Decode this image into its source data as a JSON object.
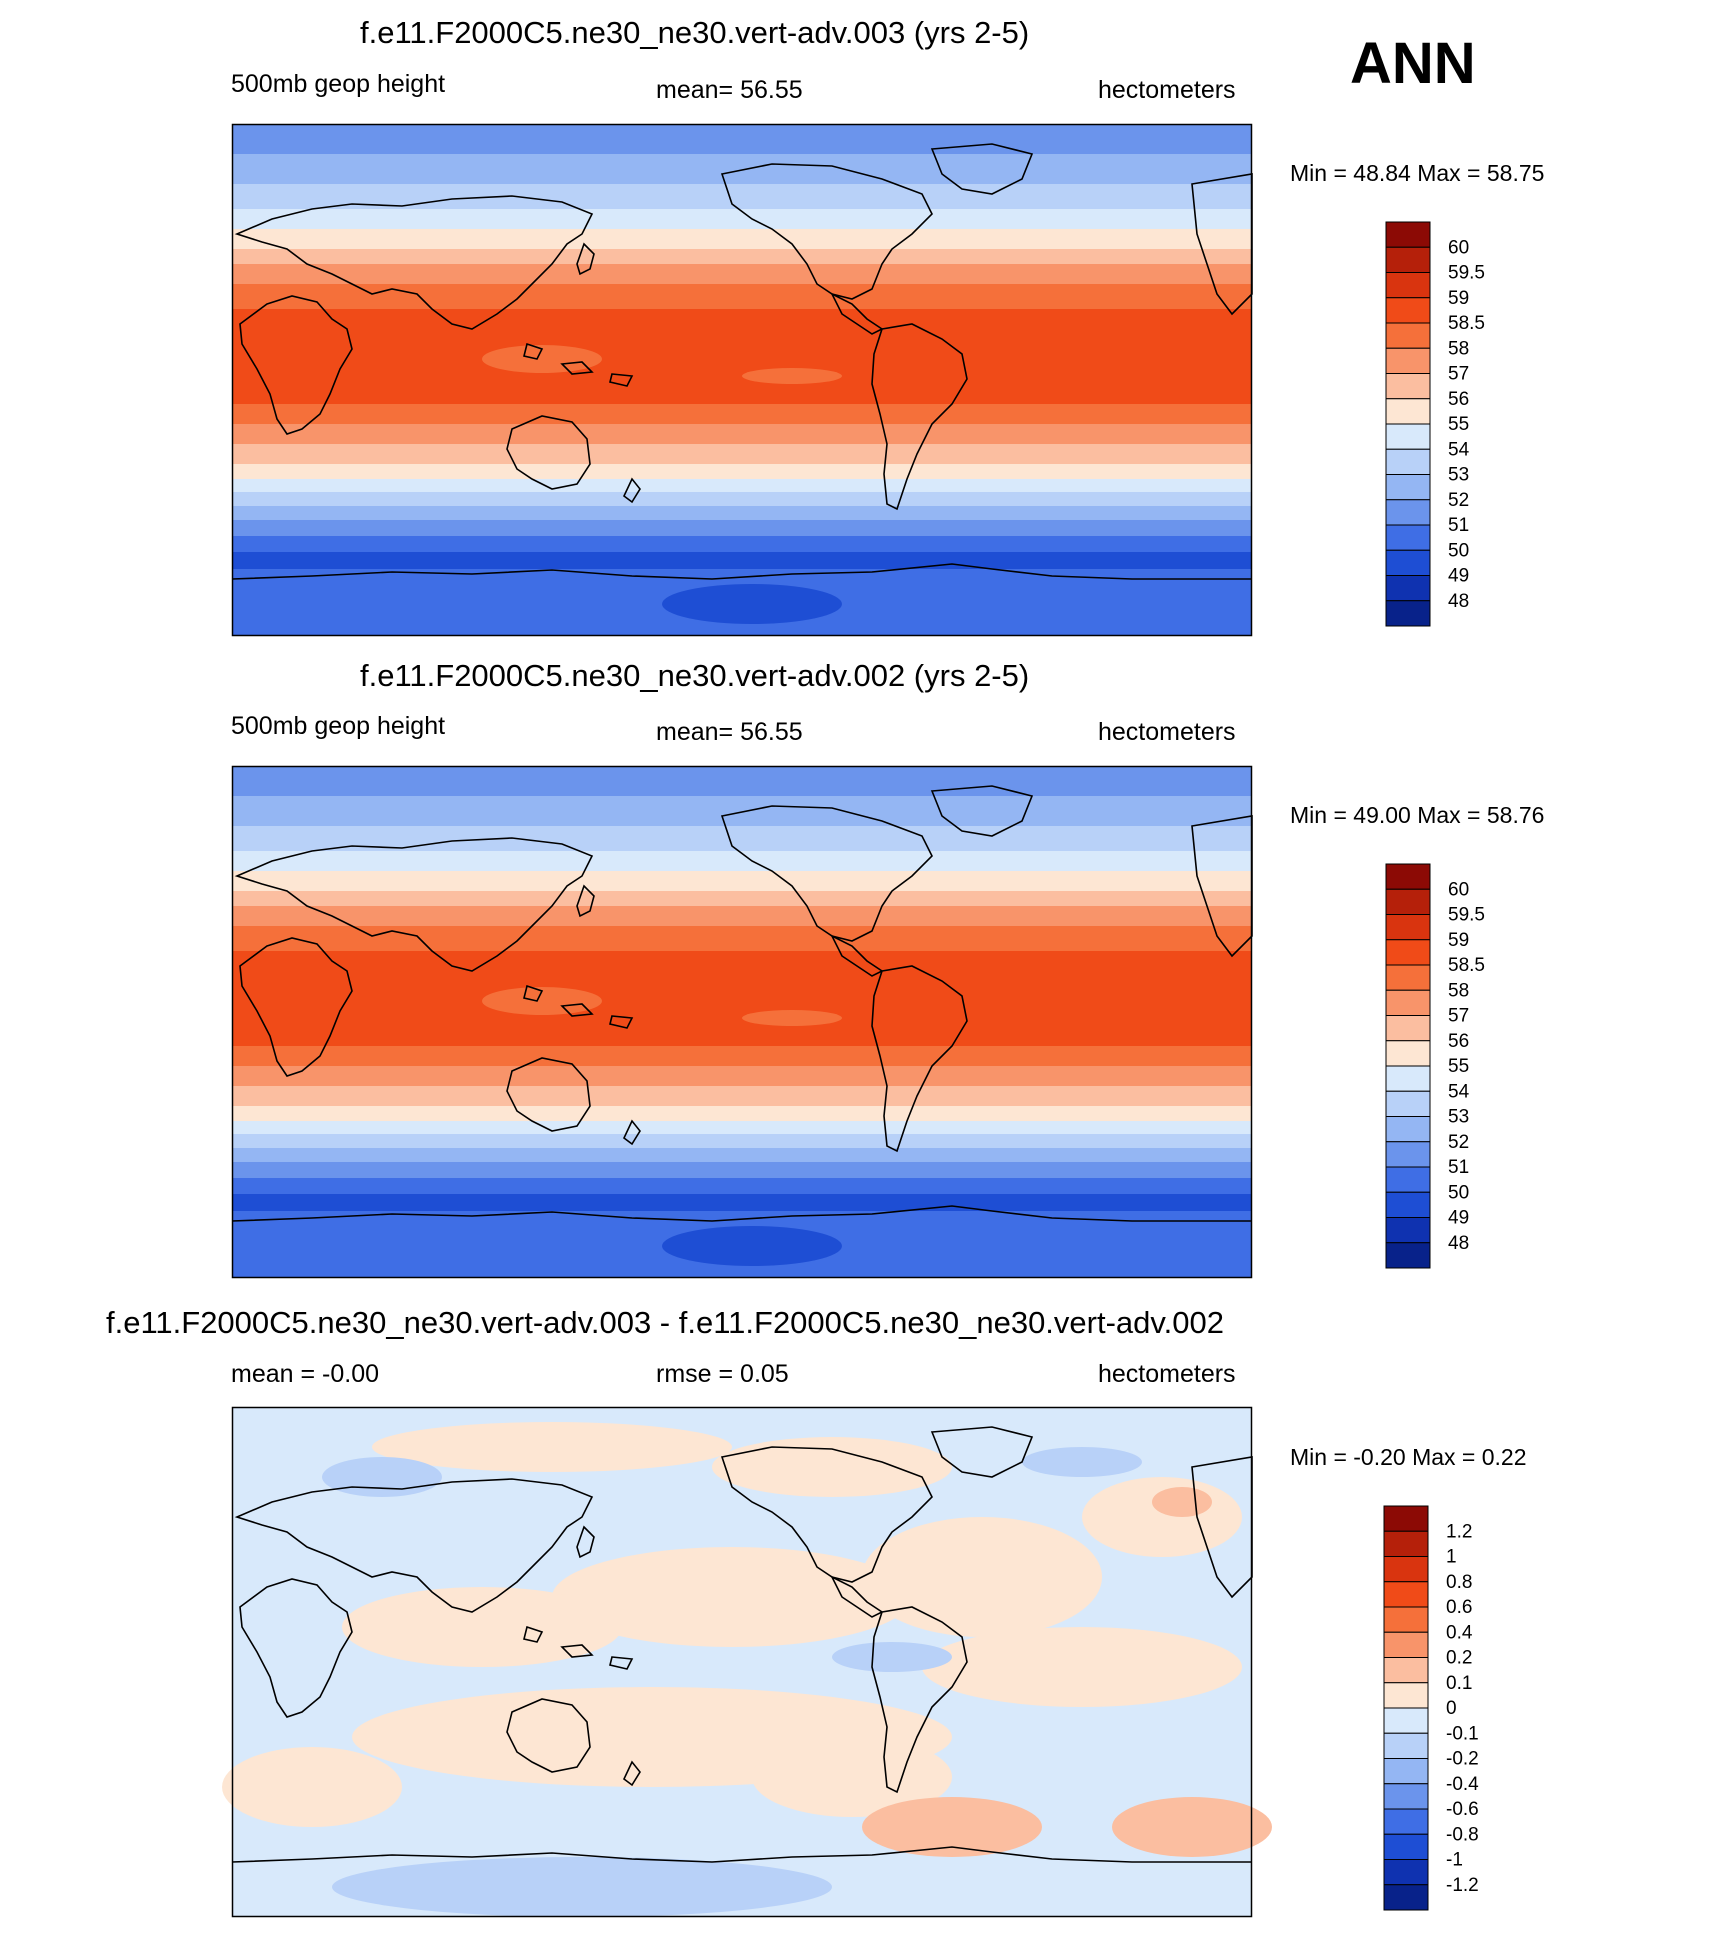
{
  "season": "ANN",
  "panels": [
    {
      "title": "f.e11.F2000C5.ne30_ne30.vert-adv.003 (yrs 2-5)",
      "left_label": "500mb geop height",
      "center_label": "mean=  56.55",
      "right_label": "hectometers",
      "minmax_label": "Min =  48.84 Max =  58.75",
      "colorbar": {
        "labels": [
          "60",
          "59.5",
          "59",
          "58.5",
          "58",
          "57",
          "56",
          "55",
          "54",
          "53",
          "52",
          "51",
          "50",
          "49",
          "48"
        ],
        "colors": [
          "#8c0a05",
          "#b5200a",
          "#d9340f",
          "#f04b18",
          "#f5703a",
          "#f8946a",
          "#fbbea0",
          "#fde6d3",
          "#d8e9fb",
          "#b8d1f8",
          "#94b6f3",
          "#6b94ec",
          "#3f6ee5",
          "#1e4ed4",
          "#0f32b0",
          "#08228a"
        ]
      },
      "kind": "field"
    },
    {
      "title": "f.e11.F2000C5.ne30_ne30.vert-adv.002 (yrs 2-5)",
      "left_label": "500mb geop height",
      "center_label": "mean=  56.55",
      "right_label": "hectometers",
      "minmax_label": "Min =  49.00 Max =  58.76",
      "colorbar": {
        "labels": [
          "60",
          "59.5",
          "59",
          "58.5",
          "58",
          "57",
          "56",
          "55",
          "54",
          "53",
          "52",
          "51",
          "50",
          "49",
          "48"
        ],
        "colors": [
          "#8c0a05",
          "#b5200a",
          "#d9340f",
          "#f04b18",
          "#f5703a",
          "#f8946a",
          "#fbbea0",
          "#fde6d3",
          "#d8e9fb",
          "#b8d1f8",
          "#94b6f3",
          "#6b94ec",
          "#3f6ee5",
          "#1e4ed4",
          "#0f32b0",
          "#08228a"
        ]
      },
      "kind": "field"
    },
    {
      "title": "f.e11.F2000C5.ne30_ne30.vert-adv.003 - f.e11.F2000C5.ne30_ne30.vert-adv.002",
      "left_label": "mean =  -0.00",
      "center_label": "rmse =   0.05",
      "right_label": "hectometers",
      "minmax_label": "Min =  -0.20 Max =   0.22",
      "colorbar": {
        "labels": [
          "1.2",
          "1",
          "0.8",
          "0.6",
          "0.4",
          "0.2",
          "0.1",
          "0",
          "-0.1",
          "-0.2",
          "-0.4",
          "-0.6",
          "-0.8",
          "-1",
          "-1.2"
        ],
        "colors": [
          "#8c0a05",
          "#b5200a",
          "#d9340f",
          "#f04b18",
          "#f5703a",
          "#f8946a",
          "#fbbea0",
          "#fde6d3",
          "#d8e9fb",
          "#b8d1f8",
          "#94b6f3",
          "#6b94ec",
          "#3f6ee5",
          "#1e4ed4",
          "#0f32b0",
          "#08228a"
        ]
      },
      "kind": "diff"
    }
  ]
}
